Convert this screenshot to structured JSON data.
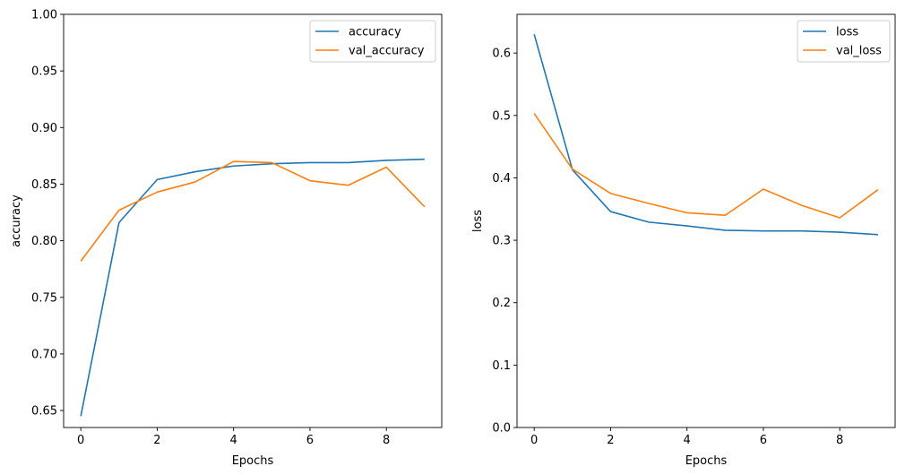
{
  "chart_data": [
    {
      "type": "line",
      "xlabel": "Epochs",
      "ylabel": "accuracy",
      "xlim": [
        -0.45,
        9.45
      ],
      "ylim": [
        0.635,
        1.0
      ],
      "xticks": [
        0,
        2,
        4,
        6,
        8
      ],
      "yticks": [
        0.65,
        0.7,
        0.75,
        0.8,
        0.85,
        0.9,
        0.95,
        1.0
      ],
      "ytick_labels": [
        "0.65",
        "0.70",
        "0.75",
        "0.80",
        "0.85",
        "0.90",
        "0.95",
        "1.00"
      ],
      "grid": false,
      "legend": "top-right",
      "x": [
        0,
        1,
        2,
        3,
        4,
        5,
        6,
        7,
        8,
        9
      ],
      "series": [
        {
          "name": "accuracy",
          "color": "#1f77b4",
          "values": [
            0.645,
            0.816,
            0.854,
            0.861,
            0.866,
            0.868,
            0.869,
            0.869,
            0.871,
            0.872
          ]
        },
        {
          "name": "val_accuracy",
          "color": "#ff7f0e",
          "values": [
            0.782,
            0.827,
            0.843,
            0.852,
            0.87,
            0.869,
            0.853,
            0.849,
            0.865,
            0.83
          ]
        }
      ]
    },
    {
      "type": "line",
      "xlabel": "Epochs",
      "ylabel": "loss",
      "xlim": [
        -0.45,
        9.45
      ],
      "ylim": [
        0.0,
        0.662
      ],
      "xticks": [
        0,
        2,
        4,
        6,
        8
      ],
      "yticks": [
        0.0,
        0.1,
        0.2,
        0.3,
        0.4,
        0.5,
        0.6
      ],
      "ytick_labels": [
        "0.0",
        "0.1",
        "0.2",
        "0.3",
        "0.4",
        "0.5",
        "0.6"
      ],
      "grid": false,
      "legend": "top-right",
      "x": [
        0,
        1,
        2,
        3,
        4,
        5,
        6,
        7,
        8,
        9
      ],
      "series": [
        {
          "name": "loss",
          "color": "#1f77b4",
          "values": [
            0.63,
            0.413,
            0.346,
            0.329,
            0.323,
            0.316,
            0.315,
            0.315,
            0.313,
            0.309
          ]
        },
        {
          "name": "val_loss",
          "color": "#ff7f0e",
          "values": [
            0.503,
            0.414,
            0.375,
            0.359,
            0.344,
            0.34,
            0.382,
            0.356,
            0.336,
            0.381
          ]
        }
      ]
    }
  ]
}
